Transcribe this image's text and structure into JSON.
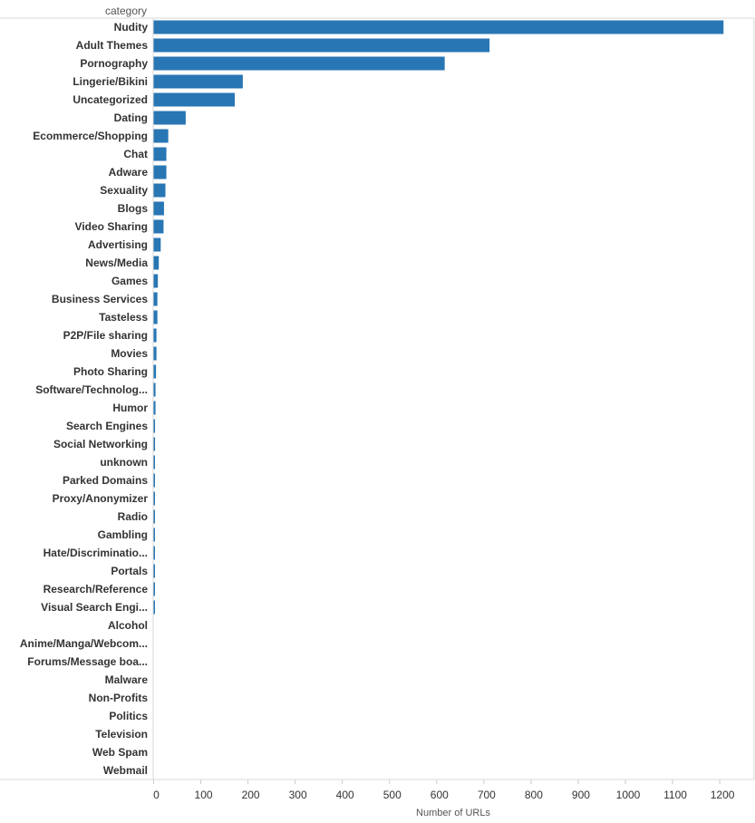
{
  "chart_data": {
    "type": "bar",
    "orientation": "horizontal",
    "row_header": "category",
    "xlabel": "Number of URLs",
    "xlim": [
      0,
      1260
    ],
    "x_ticks": [
      "0",
      "100",
      "200",
      "300",
      "400",
      "500",
      "600",
      "700",
      "800",
      "900",
      "1000",
      "1100",
      "1200"
    ],
    "bar_color": "#2876b4",
    "categories": [
      "Nudity",
      "Adult Themes",
      "Pornography",
      "Lingerie/Bikini",
      "Uncategorized",
      "Dating",
      "Ecommerce/Shopping",
      "Chat",
      "Adware",
      "Sexuality",
      "Blogs",
      "Video Sharing",
      "Advertising",
      "News/Media",
      "Games",
      "Business Services",
      "Tasteless",
      "P2P/File sharing",
      "Movies",
      "Photo Sharing",
      "Software/Technolog...",
      "Humor",
      "Search Engines",
      "Social Networking",
      "unknown",
      "Parked Domains",
      "Proxy/Anonymizer",
      "Radio",
      "Gambling",
      "Hate/Discriminatio...",
      "Portals",
      "Research/Reference",
      "Visual Search Engi...",
      "Alcohol",
      "Anime/Manga/Webcom...",
      "Forums/Message boa...",
      "Malware",
      "Non-Profits",
      "Politics",
      "Television",
      "Web Spam",
      "Webmail"
    ],
    "values": [
      1208,
      712,
      617,
      189,
      172,
      68,
      31,
      27,
      27,
      25,
      22,
      21,
      15,
      11,
      9,
      8,
      8,
      6,
      6,
      5,
      4,
      4,
      3,
      3,
      2,
      2,
      2,
      2,
      1,
      1,
      1,
      1,
      1,
      0,
      0,
      0,
      0,
      0,
      0,
      0,
      0,
      0
    ]
  }
}
